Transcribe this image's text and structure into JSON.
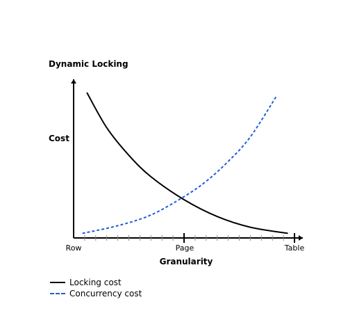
{
  "chart_data": {
    "type": "line",
    "title": "Dynamic Locking",
    "xlabel": "Granularity",
    "ylabel": "Cost",
    "x_categories": [
      "Row",
      "Page",
      "Table"
    ],
    "x_range": [
      0,
      1
    ],
    "y_range": [
      0,
      1
    ],
    "grid": false,
    "legend_position": "bottom-left",
    "series": [
      {
        "name": "Locking cost",
        "style": "solid",
        "color": "#000000",
        "x": [
          0.06,
          0.15,
          0.25,
          0.35,
          0.5,
          0.65,
          0.8,
          0.97
        ],
        "y": [
          0.95,
          0.72,
          0.54,
          0.4,
          0.25,
          0.14,
          0.07,
          0.03
        ]
      },
      {
        "name": "Concurrency cost",
        "style": "dashed",
        "color": "#1f5fd6",
        "x": [
          0.04,
          0.2,
          0.35,
          0.5,
          0.6,
          0.7,
          0.8,
          0.92
        ],
        "y": [
          0.03,
          0.08,
          0.15,
          0.27,
          0.37,
          0.5,
          0.66,
          0.93
        ]
      }
    ]
  },
  "legend": {
    "items": [
      {
        "label": "Locking cost",
        "color": "#000000"
      },
      {
        "label": "Concurrency cost",
        "color": "#1f5fd6"
      }
    ]
  }
}
